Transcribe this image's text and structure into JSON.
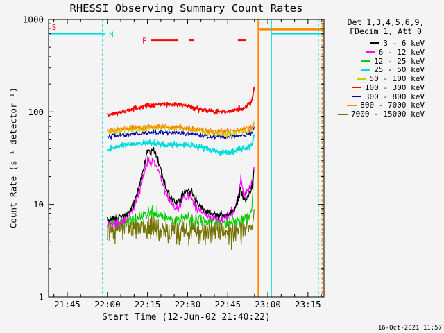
{
  "title": "RHESSI Observing Summary Count Rates",
  "xlabel": "Start Time (12-Jun-02 21:40:22)",
  "ylabel": "Count Rate (s⁻¹ detector⁻¹)",
  "timestamp": "16-Oct-2021 11:57",
  "legend": {
    "header_line1": "Det 1,3,4,5,6,9,",
    "header_line2": "FDecim 1, Att 0",
    "entries": [
      {
        "label": "3 - 6 keV",
        "color": "#000000"
      },
      {
        "label": "6 - 12 keV",
        "color": "#FF00FF"
      },
      {
        "label": "12 - 25 keV",
        "color": "#00D000"
      },
      {
        "label": "25 - 50 keV",
        "color": "#00DDDD"
      },
      {
        "label": "50 - 100 keV",
        "color": "#CDCD00"
      },
      {
        "label": "100 - 300 keV",
        "color": "#FF0000"
      },
      {
        "label": "300 - 800 keV",
        "color": "#0000B0"
      },
      {
        "label": "800 - 7000 keV",
        "color": "#FF8800"
      },
      {
        "label": "7000 - 15000 keV",
        "color": "#737300"
      }
    ]
  },
  "chart_data": {
    "type": "line",
    "y_scale": "log",
    "x_unit": "minutes since 21:40 UT, 12-Jun-2002",
    "xlim": [
      -2,
      101
    ],
    "ylim": [
      1,
      1000
    ],
    "x_ticks": [
      {
        "t": 5,
        "label": "21:45"
      },
      {
        "t": 20,
        "label": "22:00"
      },
      {
        "t": 35,
        "label": "22:15"
      },
      {
        "t": 50,
        "label": "22:30"
      },
      {
        "t": 65,
        "label": "22:45"
      },
      {
        "t": 80,
        "label": "23:00"
      },
      {
        "t": 95,
        "label": "23:15"
      }
    ],
    "x_minor_step": 5,
    "y_ticks": [
      {
        "v": 1,
        "label": "1"
      },
      {
        "v": 10,
        "label": "10"
      },
      {
        "v": 100,
        "label": "100"
      },
      {
        "v": 1000,
        "label": "1000"
      }
    ],
    "series": [
      {
        "name": "3 - 6 keV",
        "color": "#000000",
        "lw": 1.2,
        "noise": 0.02,
        "z": 9,
        "points": [
          [
            20,
            7.0
          ],
          [
            22,
            6.9
          ],
          [
            24,
            7.1
          ],
          [
            26,
            7.4
          ],
          [
            28,
            8.2
          ],
          [
            30,
            10.5
          ],
          [
            31.5,
            14
          ],
          [
            33,
            21
          ],
          [
            34,
            29
          ],
          [
            34.8,
            36
          ],
          [
            35.5,
            40
          ],
          [
            36.2,
            34
          ],
          [
            37,
            39
          ],
          [
            38,
            36
          ],
          [
            39,
            29
          ],
          [
            40.5,
            21
          ],
          [
            42,
            15
          ],
          [
            43.5,
            12
          ],
          [
            45,
            10.5
          ],
          [
            46.5,
            10.8
          ],
          [
            48,
            12.5
          ],
          [
            49.5,
            14.5
          ],
          [
            51,
            14
          ],
          [
            52.5,
            12
          ],
          [
            54,
            10
          ],
          [
            56,
            8.8
          ],
          [
            58,
            8.2
          ],
          [
            60,
            7.8
          ],
          [
            62,
            7.6
          ],
          [
            64,
            7.7
          ],
          [
            66,
            8.0
          ],
          [
            67.5,
            8.8
          ],
          [
            68.8,
            11
          ],
          [
            69.8,
            15
          ],
          [
            70.6,
            12.5
          ],
          [
            71.5,
            11
          ],
          [
            72.5,
            12
          ],
          [
            73.5,
            13.5
          ],
          [
            74.3,
            17
          ],
          [
            75,
            26
          ]
        ]
      },
      {
        "name": "6 - 12 keV",
        "color": "#FF00FF",
        "lw": 1.2,
        "noise": 0.025,
        "z": 8,
        "points": [
          [
            20,
            6.3
          ],
          [
            22,
            6.2
          ],
          [
            24,
            6.3
          ],
          [
            26,
            6.6
          ],
          [
            28,
            7.4
          ],
          [
            30,
            9.5
          ],
          [
            31.5,
            13
          ],
          [
            33,
            18
          ],
          [
            34,
            24
          ],
          [
            34.8,
            28
          ],
          [
            35.5,
            31
          ],
          [
            36.2,
            27
          ],
          [
            37,
            30
          ],
          [
            38,
            28
          ],
          [
            39,
            23
          ],
          [
            40.5,
            17
          ],
          [
            42,
            13
          ],
          [
            43.5,
            10.5
          ],
          [
            45,
            9.3
          ],
          [
            46.5,
            9.6
          ],
          [
            48,
            11
          ],
          [
            49.5,
            12.5
          ],
          [
            51,
            12
          ],
          [
            52.5,
            10.5
          ],
          [
            54,
            9
          ],
          [
            56,
            8
          ],
          [
            58,
            7.5
          ],
          [
            60,
            7.2
          ],
          [
            62,
            7.1
          ],
          [
            64,
            7.3
          ],
          [
            66,
            7.7
          ],
          [
            67.5,
            8.6
          ],
          [
            68.8,
            11.5
          ],
          [
            69.4,
            14
          ],
          [
            69.9,
            21
          ],
          [
            70.4,
            15
          ],
          [
            71.2,
            12.5
          ],
          [
            72.2,
            13.5
          ],
          [
            73.2,
            15
          ],
          [
            74.3,
            19
          ],
          [
            75,
            29
          ]
        ]
      },
      {
        "name": "12 - 25 keV",
        "color": "#00D000",
        "lw": 1.1,
        "noise": 0.032,
        "z": 7,
        "points": [
          [
            20,
            6.4
          ],
          [
            23,
            6.4
          ],
          [
            26,
            6.5
          ],
          [
            29,
            6.8
          ],
          [
            32,
            7.3
          ],
          [
            34.5,
            7.9
          ],
          [
            36.5,
            8.1
          ],
          [
            38.5,
            7.7
          ],
          [
            41,
            7.2
          ],
          [
            44,
            6.9
          ],
          [
            47,
            6.8
          ],
          [
            50,
            7.0
          ],
          [
            53,
            6.8
          ],
          [
            56,
            6.6
          ],
          [
            59,
            6.5
          ],
          [
            62,
            6.4
          ],
          [
            65,
            6.4
          ],
          [
            68,
            6.6
          ],
          [
            70.5,
            6.9
          ],
          [
            72.5,
            7.3
          ],
          [
            74,
            8.5
          ],
          [
            75,
            28
          ]
        ]
      },
      {
        "name": "25 - 50 keV",
        "color": "#00DDDD",
        "lw": 1.8,
        "noise": 0.016,
        "z": 5,
        "points": [
          [
            20,
            39
          ],
          [
            23,
            42
          ],
          [
            26,
            44
          ],
          [
            29,
            45
          ],
          [
            32,
            46
          ],
          [
            35,
            46
          ],
          [
            38,
            45.5
          ],
          [
            41,
            44.5
          ],
          [
            44,
            43.5
          ],
          [
            47,
            43.5
          ],
          [
            50,
            44
          ],
          [
            53,
            43
          ],
          [
            56,
            41
          ],
          [
            59,
            38.5
          ],
          [
            62,
            37
          ],
          [
            65,
            36.5
          ],
          [
            67,
            37.5
          ],
          [
            69,
            39
          ],
          [
            71,
            40.5
          ],
          [
            73,
            42
          ],
          [
            74.3,
            46
          ],
          [
            75,
            60
          ]
        ]
      },
      {
        "name": "50 - 100 keV",
        "color": "#CDCD00",
        "lw": 1.1,
        "noise": 0.018,
        "z": 2,
        "points": [
          [
            20,
            60
          ],
          [
            24,
            62
          ],
          [
            28,
            63.5
          ],
          [
            32,
            65.5
          ],
          [
            36,
            67
          ],
          [
            40,
            68
          ],
          [
            44,
            67
          ],
          [
            48,
            65.5
          ],
          [
            52,
            63.5
          ],
          [
            56,
            61
          ],
          [
            60,
            58.5
          ],
          [
            64,
            57.5
          ],
          [
            67,
            58.5
          ],
          [
            69.5,
            60
          ],
          [
            72,
            62
          ],
          [
            74,
            65
          ],
          [
            75,
            78
          ]
        ]
      },
      {
        "name": "100 - 300 keV",
        "color": "#FF0000",
        "lw": 1.8,
        "noise": 0.013,
        "z": 4,
        "points": [
          [
            20,
            93
          ],
          [
            23,
            97
          ],
          [
            26,
            101
          ],
          [
            29,
            106
          ],
          [
            32,
            112
          ],
          [
            35,
            117
          ],
          [
            38,
            120
          ],
          [
            41,
            122
          ],
          [
            44,
            121
          ],
          [
            47,
            119
          ],
          [
            50,
            116
          ],
          [
            53,
            110
          ],
          [
            56,
            104
          ],
          [
            59,
            101
          ],
          [
            62,
            100
          ],
          [
            65,
            101
          ],
          [
            67,
            103
          ],
          [
            69,
            106
          ],
          [
            71.5,
            111
          ],
          [
            74,
            130
          ],
          [
            75,
            195
          ]
        ]
      },
      {
        "name": "300 - 800 keV",
        "color": "#0000B0",
        "lw": 1.1,
        "noise": 0.013,
        "z": 1,
        "points": [
          [
            20,
            55
          ],
          [
            24,
            56
          ],
          [
            28,
            57
          ],
          [
            32,
            58.5
          ],
          [
            36,
            59.5
          ],
          [
            40,
            60
          ],
          [
            44,
            59.5
          ],
          [
            48,
            58.5
          ],
          [
            52,
            57.5
          ],
          [
            56,
            55.5
          ],
          [
            60,
            54
          ],
          [
            64,
            53.5
          ],
          [
            67,
            54.5
          ],
          [
            69.5,
            56
          ],
          [
            72,
            57.5
          ],
          [
            74,
            60
          ],
          [
            75,
            70
          ]
        ]
      },
      {
        "name": "800 - 7000 keV",
        "color": "#FF8800",
        "lw": 1.1,
        "noise": 0.015,
        "z": 3,
        "points": [
          [
            20,
            63
          ],
          [
            24,
            64.5
          ],
          [
            28,
            66
          ],
          [
            32,
            67.5
          ],
          [
            36,
            69
          ],
          [
            40,
            70
          ],
          [
            44,
            69
          ],
          [
            48,
            67.5
          ],
          [
            52,
            65.5
          ],
          [
            56,
            63.5
          ],
          [
            60,
            62
          ],
          [
            64,
            61.5
          ],
          [
            67,
            62.5
          ],
          [
            69.5,
            64
          ],
          [
            72,
            65.5
          ],
          [
            74,
            68
          ],
          [
            75,
            77
          ]
        ]
      },
      {
        "name": "7000 - 15000 keV",
        "color": "#737300",
        "lw": 1.1,
        "noise": 0.07,
        "z": 6,
        "points": [
          [
            20,
            5.5
          ],
          [
            24,
            5.6
          ],
          [
            28,
            5.7
          ],
          [
            32,
            5.8
          ],
          [
            36,
            5.6
          ],
          [
            40,
            5.3
          ],
          [
            44,
            5.1
          ],
          [
            48,
            5.2
          ],
          [
            52,
            5.3
          ],
          [
            56,
            5.1
          ],
          [
            60,
            5.0
          ],
          [
            64,
            5.1
          ],
          [
            67,
            5.3
          ],
          [
            69.5,
            5.4
          ],
          [
            72,
            5.5
          ],
          [
            74,
            5.9
          ],
          [
            75,
            7.5
          ]
        ]
      }
    ],
    "annotations": {
      "vlines": [
        {
          "t": 18.2,
          "color": "#00DDDD",
          "dash": "4,3",
          "lw": 1.2,
          "name": "night-boundary-dashed-left"
        },
        {
          "t": 76.5,
          "color": "#FF8800",
          "dash": "",
          "lw": 2.5,
          "name": "saa-start-line"
        },
        {
          "t": 81.3,
          "color": "#00DDDD",
          "dash": "",
          "lw": 1.5,
          "name": "night-start-line"
        },
        {
          "t": 98.9,
          "color": "#00DDDD",
          "dash": "4,3",
          "lw": 1.2,
          "name": "night-boundary-dashed-right"
        },
        {
          "t": 100.3,
          "color": "#FF8800",
          "dash": "4,3",
          "lw": 1.2,
          "name": "saa-boundary-dashed-right"
        }
      ],
      "hsegments": [
        {
          "t1": -2,
          "t2": 19.3,
          "v": 700,
          "color": "#00DDDD",
          "lw": 2,
          "name": "night-flag-bar-left"
        },
        {
          "t1": 81.5,
          "t2": 101,
          "v": 700,
          "color": "#00DDDD",
          "lw": 2,
          "name": "night-flag-bar-right"
        },
        {
          "t1": 76.9,
          "t2": 101,
          "v": 780,
          "color": "#FF8800",
          "lw": 2.5,
          "name": "saa-flag-bar"
        },
        {
          "t1": 36.4,
          "t2": 46.5,
          "v": 600,
          "color": "#FF0000",
          "lw": 3,
          "name": "flare-flag-bar-1"
        },
        {
          "t1": 50.4,
          "t2": 52.5,
          "v": 600,
          "color": "#FF0000",
          "lw": 3,
          "name": "flare-flag-bar-2"
        },
        {
          "t1": 68.8,
          "t2": 71.9,
          "v": 600,
          "color": "#FF0000",
          "lw": 3,
          "name": "flare-flag-bar-3"
        }
      ],
      "labels": [
        {
          "text": "S",
          "color": "#FF0000",
          "t": -0.8,
          "v": 830,
          "name": "saa-flag-label"
        },
        {
          "text": "N",
          "color": "#00DDDD",
          "t": 20.6,
          "v": 690,
          "name": "night-flag-label"
        },
        {
          "text": "F",
          "color": "#FF0000",
          "t": 33.0,
          "v": 590,
          "name": "flare-flag-label"
        }
      ]
    }
  }
}
